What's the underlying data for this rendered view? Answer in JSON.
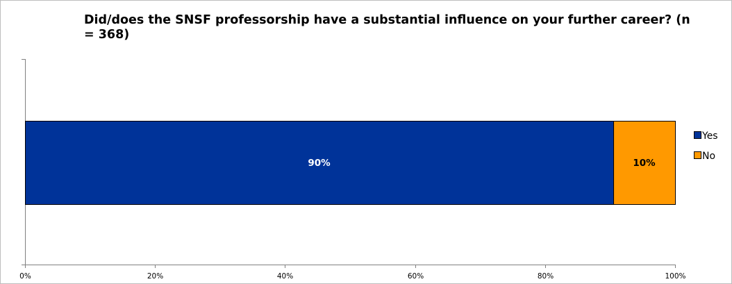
{
  "chart_data": {
    "type": "bar",
    "orientation": "horizontal",
    "stacked": true,
    "percent_scale": true,
    "title": "Did/does the SNSF professorship have a substantial influence on your further career? (n = 368)",
    "xlabel": "",
    "ylabel": "",
    "categories": [
      ""
    ],
    "xlim": [
      0,
      100
    ],
    "x_ticks": [
      0,
      20,
      40,
      60,
      80,
      100
    ],
    "x_tick_labels": [
      "0%",
      "20%",
      "40%",
      "60%",
      "80%",
      "100%"
    ],
    "grid": false,
    "legend_position": "right",
    "series": [
      {
        "name": "Yes",
        "values": [
          90.5
        ],
        "data_label": "90%",
        "color": "#003399",
        "label_color": "#ffffff"
      },
      {
        "name": "No",
        "values": [
          9.5
        ],
        "data_label": "10%",
        "color": "#ff9900",
        "label_color": "#000000"
      }
    ]
  }
}
